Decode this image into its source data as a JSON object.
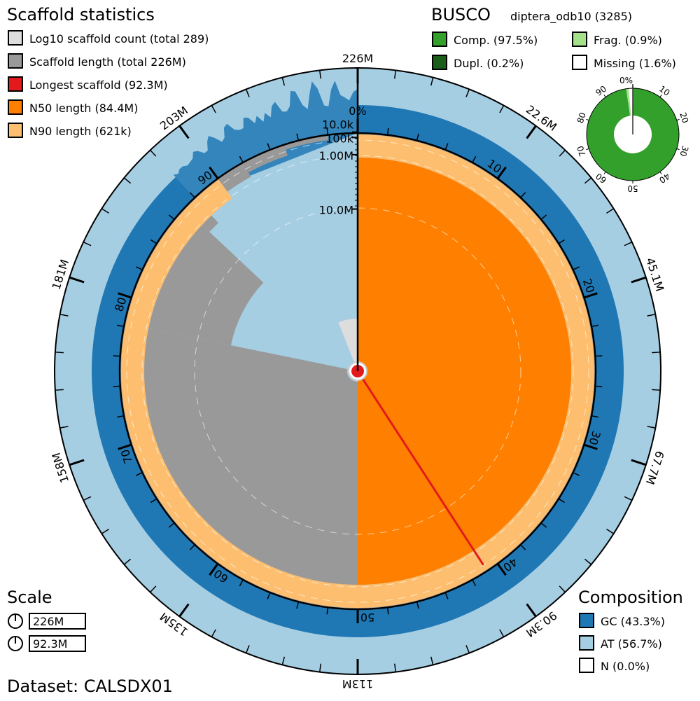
{
  "chart_data": {
    "type": "snail",
    "dataset_label": "Dataset: CALSDX01",
    "scaffold_stats": {
      "title": "Scaffold statistics",
      "legend": [
        {
          "label": "Log10 scaffold count (total 289)",
          "color": "#dddddd"
        },
        {
          "label": "Scaffold length (total 226M)",
          "color": "#999999"
        },
        {
          "label": "Longest scaffold (92.3M)",
          "color": "#e31a1c"
        },
        {
          "label": "N50 length (84.4M)",
          "color": "#ff7f00"
        },
        {
          "label": "N90 length (621k)",
          "color": "#fdbf6f"
        }
      ],
      "scaffold_count": 289,
      "total_length_M": 226,
      "longest_M": 92.3,
      "n50_M": 84.4,
      "n90_M": 0.621,
      "length_profile": [
        {
          "from_pct": 0,
          "to_pct": 40.8,
          "length_M": 92.3
        },
        {
          "from_pct": 40.8,
          "to_pct": 78.2,
          "length_M": 84.4
        },
        {
          "from_pct": 78.2,
          "to_pct": 87.0,
          "length_M": 19.9
        },
        {
          "from_pct": 87.0,
          "to_pct": 88.0,
          "length_M": 2.3
        },
        {
          "from_pct": 88.0,
          "to_pct": 89.0,
          "length_M": 1.2
        },
        {
          "from_pct": 89.0,
          "to_pct": 90.0,
          "length_M": 0.8
        },
        {
          "from_pct": 90.0,
          "to_pct": 92.0,
          "length_M": 0.62
        },
        {
          "from_pct": 92.0,
          "to_pct": 95.0,
          "length_M": 0.35
        },
        {
          "from_pct": 95.0,
          "to_pct": 98.0,
          "length_M": 0.12
        },
        {
          "from_pct": 98.0,
          "to_pct": 100.0,
          "length_M": 0.02
        }
      ],
      "radial_ticks": [
        "10.0k",
        "100k",
        "1.00M",
        "10.0M"
      ],
      "radial_tick_values_M": [
        0.01,
        0.1,
        1,
        10
      ],
      "outer_ticks": [
        "226M",
        "22.6M",
        "45.1M",
        "67.7M",
        "90.3M",
        "113M",
        "135M",
        "158M",
        "181M",
        "203M"
      ],
      "percent_ticks": [
        "0%",
        "10",
        "20",
        "30",
        "40",
        "50",
        "60",
        "70",
        "80",
        "90"
      ]
    },
    "busco": {
      "title": "BUSCO",
      "lineage": "diptera_odb10 (3285)",
      "legend": [
        {
          "label": "Comp. (97.5%)",
          "color": "#33a02c",
          "value": 97.5
        },
        {
          "label": "Frag. (0.9%)",
          "color": "#a3e18a",
          "value": 0.9
        },
        {
          "label": "Dupl. (0.2%)",
          "color": "#1a5e1a",
          "value": 0.2
        },
        {
          "label": "Missing (1.6%)",
          "color": "#ffffff",
          "value": 1.6
        }
      ],
      "ticks": [
        "0%",
        "10",
        "20",
        "30",
        "40",
        "50",
        "60",
        "70",
        "80",
        "90"
      ]
    },
    "composition": {
      "title": "Composition",
      "legend": [
        {
          "label": "GC (43.3%)",
          "color": "#1f78b4",
          "value": 43.3
        },
        {
          "label": "AT (56.7%)",
          "color": "#a6cee3",
          "value": 56.7
        },
        {
          "label": "N (0.0%)",
          "color": "#ffffff",
          "value": 0.0
        }
      ]
    },
    "scale": {
      "title": "Scale",
      "items": [
        "226M",
        "92.3M"
      ]
    }
  }
}
